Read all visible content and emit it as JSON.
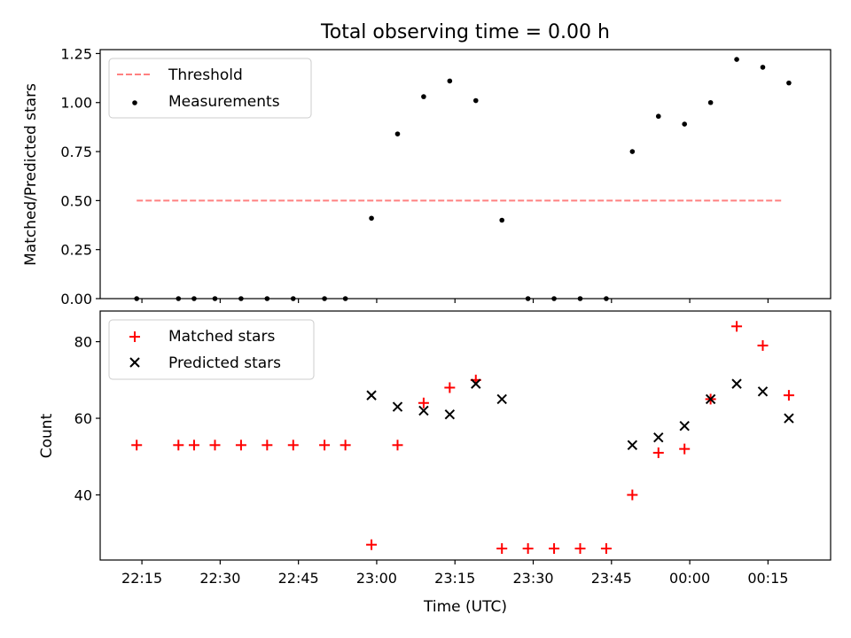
{
  "chart_data": [
    {
      "type": "scatter",
      "title": "Total observing time = 0.00 h",
      "xlabel": "",
      "ylabel": "Matched/Predicted stars",
      "ylim": [
        0.0,
        1.27
      ],
      "yticks": [
        "0.00",
        "0.25",
        "0.50",
        "0.75",
        "1.00",
        "1.25"
      ],
      "ytick_values": [
        0.0,
        0.25,
        0.5,
        0.75,
        1.0,
        1.25
      ],
      "xlim": [
        "22:07",
        "00:27"
      ],
      "legend_position": "top-left",
      "series": [
        {
          "name": "Threshold",
          "style": "dashed-line",
          "color": "#ff8080",
          "x": [
            "22:14",
            "00:18"
          ],
          "y": [
            0.5,
            0.5
          ]
        },
        {
          "name": "Measurements",
          "style": "dot",
          "color": "#000000",
          "x": [
            "22:14",
            "22:22",
            "22:25",
            "22:29",
            "22:34",
            "22:39",
            "22:44",
            "22:50",
            "22:54",
            "22:59",
            "23:04",
            "23:09",
            "23:14",
            "23:19",
            "23:24",
            "23:29",
            "23:34",
            "23:39",
            "23:44",
            "23:49",
            "23:54",
            "23:59",
            "00:04",
            "00:09",
            "00:14",
            "00:19"
          ],
          "y": [
            0.0,
            0.0,
            0.0,
            0.0,
            0.0,
            0.0,
            0.0,
            0.0,
            0.0,
            0.41,
            0.84,
            1.03,
            1.11,
            1.01,
            0.4,
            0.0,
            0.0,
            0.0,
            0.0,
            0.75,
            0.93,
            0.89,
            1.0,
            1.22,
            1.18,
            1.1
          ]
        }
      ]
    },
    {
      "type": "scatter",
      "title": "",
      "xlabel": "Time (UTC)",
      "ylabel": "Count",
      "ylim": [
        23,
        88
      ],
      "yticks": [
        "40",
        "60",
        "80"
      ],
      "ytick_values": [
        40,
        60,
        80
      ],
      "xlim": [
        "22:07",
        "00:27"
      ],
      "xticks": [
        "22:15",
        "22:30",
        "22:45",
        "23:00",
        "23:15",
        "23:30",
        "23:45",
        "00:00",
        "00:15"
      ],
      "legend_position": "top-left",
      "series": [
        {
          "name": "Matched stars",
          "marker": "plus",
          "color": "#ff0000",
          "x": [
            "22:14",
            "22:22",
            "22:25",
            "22:29",
            "22:34",
            "22:39",
            "22:44",
            "22:50",
            "22:54",
            "22:59",
            "23:04",
            "23:09",
            "23:14",
            "23:19",
            "23:24",
            "23:29",
            "23:34",
            "23:39",
            "23:44",
            "23:49",
            "23:54",
            "23:59",
            "00:04",
            "00:09",
            "00:14",
            "00:19"
          ],
          "y": [
            53,
            53,
            53,
            53,
            53,
            53,
            53,
            53,
            53,
            27,
            53,
            64,
            68,
            70,
            26,
            26,
            26,
            26,
            26,
            40,
            51,
            52,
            65,
            84,
            79,
            66
          ]
        },
        {
          "name": "Predicted stars",
          "marker": "x",
          "color": "#000000",
          "x": [
            "22:59",
            "23:04",
            "23:09",
            "23:14",
            "23:19",
            "23:24",
            "23:49",
            "23:54",
            "23:59",
            "00:04",
            "00:09",
            "00:14",
            "00:19"
          ],
          "y": [
            66,
            63,
            62,
            61,
            69,
            65,
            53,
            55,
            58,
            65,
            69,
            67,
            60
          ]
        }
      ]
    }
  ]
}
